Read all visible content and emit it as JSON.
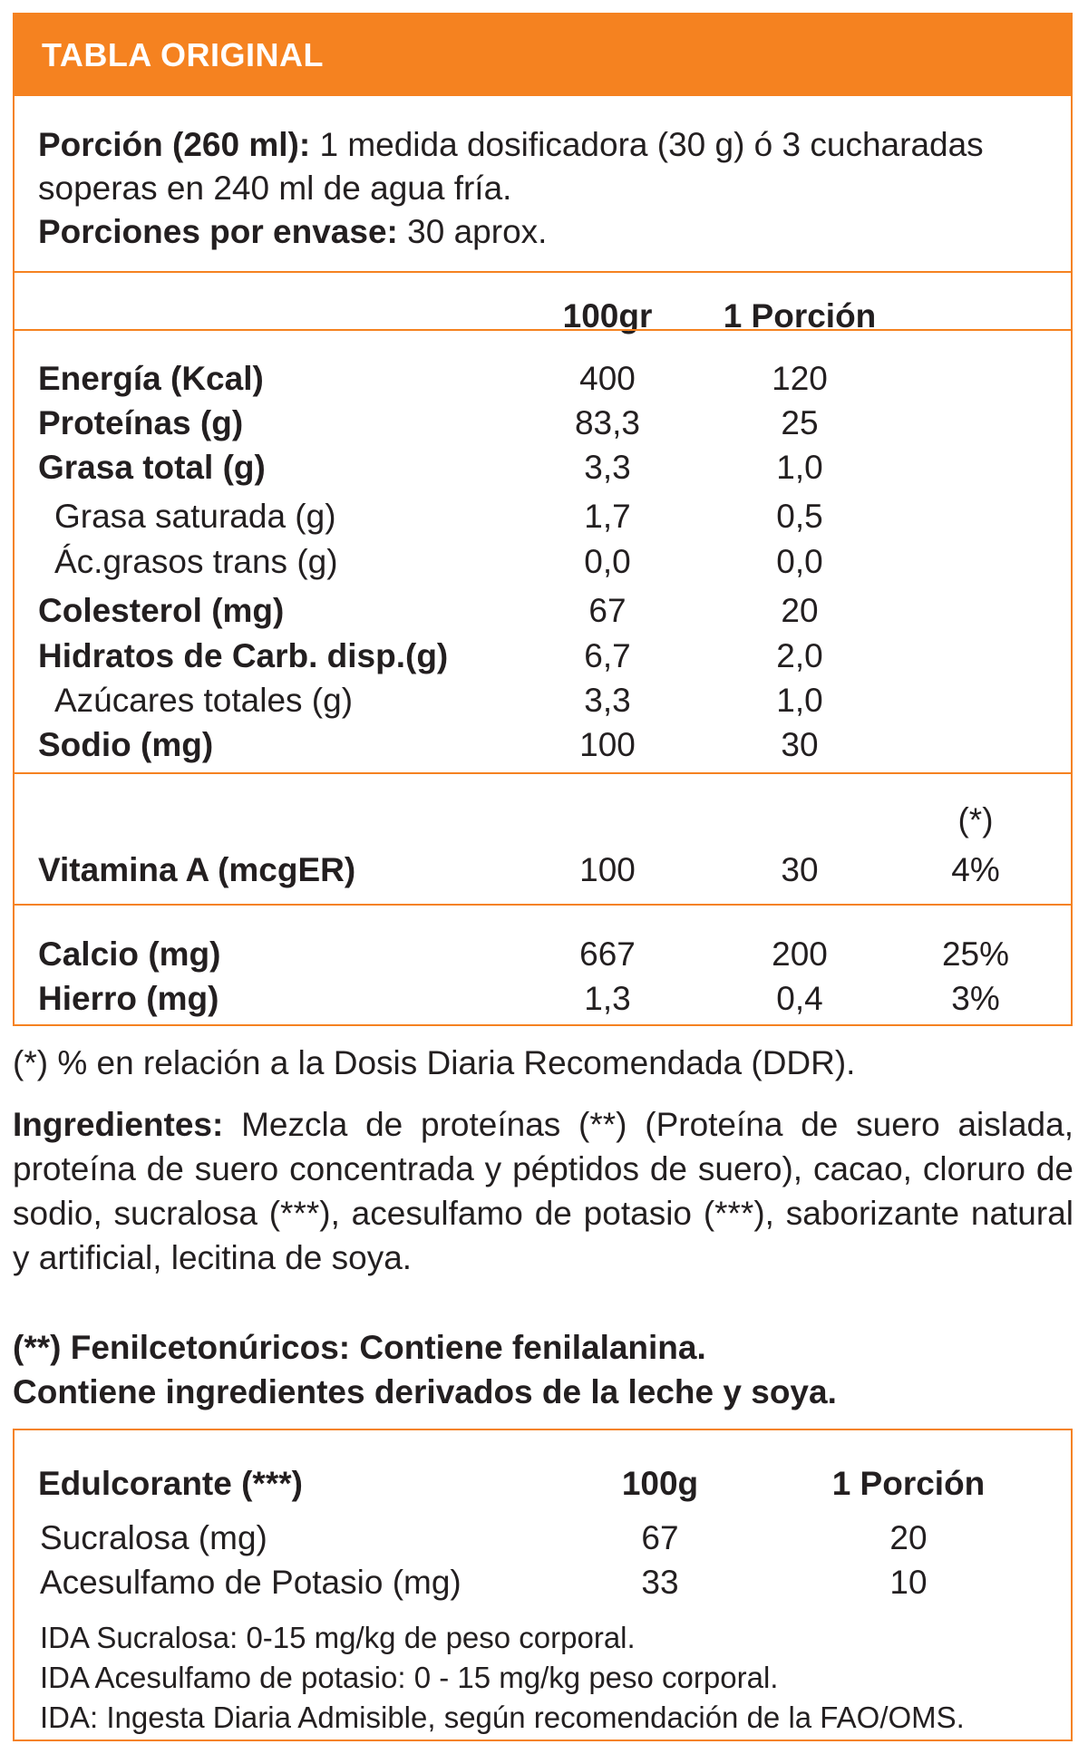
{
  "header": {
    "title": "TABLA ORIGINAL"
  },
  "portion": {
    "label": "Porción (260 ml):",
    "text_line1": " 1 medida dosificadora (30 g) ó 3 cucharadas",
    "text_line2": "soperas en 240 ml de agua fría.",
    "servings_label": "Porciones por envase:",
    "servings_value": " 30 aprox."
  },
  "columns": {
    "per100": "100gr",
    "per_portion": "1 Porción",
    "ddr_mark": "(*)"
  },
  "nutrients": [
    {
      "name": "Energía (Kcal)",
      "per100": "400",
      "portion": "120"
    },
    {
      "name": "Proteínas (g)",
      "per100": "83,3",
      "portion": "25"
    },
    {
      "name": "Grasa total (g)",
      "per100": "3,3",
      "portion": "1,0"
    },
    {
      "name": "Grasa saturada (g)",
      "per100": "1,7",
      "portion": "0,5"
    },
    {
      "name": "Ác.grasos trans (g)",
      "per100": "0,0",
      "portion": "0,0"
    },
    {
      "name": "Colesterol (mg)",
      "per100": "67",
      "portion": "20"
    },
    {
      "name": "Hidratos de Carb. disp.(g)",
      "per100": "6,7",
      "portion": "2,0"
    },
    {
      "name": "Azúcares totales (g)",
      "per100": "3,3",
      "portion": "1,0"
    },
    {
      "name": "Sodio (mg)",
      "per100": "100",
      "portion": "30"
    }
  ],
  "vitamins": [
    {
      "name": "Vitamina A (mcgER)",
      "per100": "100",
      "portion": "30",
      "ddr": "4%"
    }
  ],
  "minerals": [
    {
      "name": "Calcio (mg)",
      "per100": "667",
      "portion": "200",
      "ddr": "25%"
    },
    {
      "name": "Hierro (mg)",
      "per100": "1,3",
      "portion": "0,4",
      "ddr": "3%"
    }
  ],
  "footnote": "(*) % en relación a la Dosis Diaria Recomendada (DDR).",
  "ingredients": {
    "label": "Ingredientes:",
    "text": " Mezcla de proteínas (**) (Proteína de suero aislada, proteína de suero concentrada y péptidos de suero), cacao, cloruro de sodio, sucralosa (***), acesulfamo de potasio (***), saborizante natural y artificial, lecitina de soya."
  },
  "warnings": {
    "line1": "(**) Fenilcetonúricos: Contiene fenilalanina.",
    "line2": "Contiene ingredientes derivados de la leche y soya."
  },
  "sweeteners": {
    "header": "Edulcorante (***)",
    "col_100": "100g",
    "col_portion": "1 Porción",
    "rows": [
      {
        "name": "Sucralosa (mg)",
        "per100": "67",
        "portion": "20"
      },
      {
        "name": "Acesulfamo de Potasio (mg)",
        "per100": "33",
        "portion": "10"
      }
    ],
    "notes": [
      "IDA Sucralosa: 0-15 mg/kg de peso corporal.",
      "IDA Acesulfamo de potasio: 0 - 15 mg/kg peso corporal.",
      "IDA: Ingesta Diaria Admisible, según recomendación de la FAO/OMS."
    ]
  },
  "colors": {
    "accent": "#f58220",
    "text": "#231f20",
    "header_text": "#ffffff"
  }
}
